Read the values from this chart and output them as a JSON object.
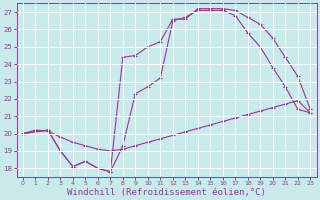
{
  "background_color": "#c8eaea",
  "grid_color": "#ffffff",
  "line_color": "#993399",
  "xlabel": "Windchill (Refroidissement éolien,°C)",
  "xlabel_fontsize": 6.5,
  "ylabel_ticks": [
    18,
    19,
    20,
    21,
    22,
    23,
    24,
    25,
    26,
    27
  ],
  "xlabel_ticks": [
    0,
    1,
    2,
    3,
    4,
    5,
    6,
    7,
    8,
    9,
    10,
    11,
    12,
    13,
    14,
    15,
    16,
    17,
    18,
    19,
    20,
    21,
    22,
    23
  ],
  "xlim": [
    -0.5,
    23.5
  ],
  "ylim": [
    17.5,
    27.5
  ],
  "line1_x": [
    0,
    1,
    2,
    3,
    4,
    5,
    6,
    7,
    8,
    9,
    10,
    11,
    12,
    13,
    14,
    15,
    16,
    17,
    18,
    19,
    20,
    21,
    22,
    23
  ],
  "line1_y": [
    20.0,
    20.2,
    20.15,
    19.8,
    19.5,
    19.3,
    19.1,
    19.0,
    19.1,
    19.3,
    19.5,
    19.7,
    19.9,
    20.1,
    20.3,
    20.5,
    20.7,
    20.9,
    21.1,
    21.3,
    21.5,
    21.7,
    21.9,
    21.2
  ],
  "line2_x": [
    0,
    2,
    3,
    4,
    5,
    6,
    7,
    8,
    9,
    10,
    11,
    12,
    13,
    14,
    15,
    16,
    17,
    18,
    19,
    20,
    21,
    22,
    23
  ],
  "line2_y": [
    20.0,
    20.2,
    19.0,
    18.1,
    18.4,
    18.0,
    17.8,
    19.3,
    22.3,
    22.7,
    23.2,
    26.5,
    26.7,
    27.1,
    27.1,
    27.1,
    26.8,
    25.8,
    25.0,
    23.8,
    22.7,
    21.4,
    21.2
  ],
  "line3_x": [
    0,
    2,
    3,
    4,
    5,
    6,
    7,
    8,
    9,
    10,
    11,
    12,
    13,
    14,
    15,
    16,
    17,
    18,
    19,
    20,
    21,
    22,
    23
  ],
  "line3_y": [
    20.0,
    20.2,
    19.0,
    18.1,
    18.4,
    18.0,
    17.8,
    24.4,
    24.5,
    25.0,
    25.3,
    26.6,
    26.6,
    27.2,
    27.2,
    27.2,
    27.1,
    26.7,
    26.3,
    25.5,
    24.4,
    23.3,
    21.4
  ]
}
